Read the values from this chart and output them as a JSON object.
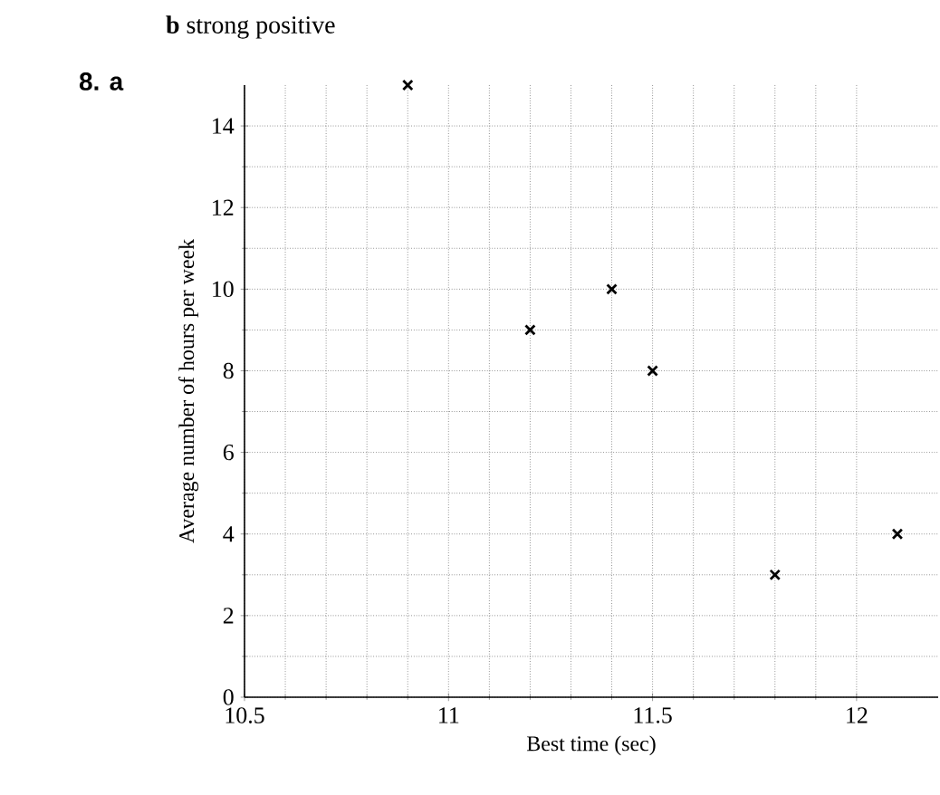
{
  "chart_data": {
    "type": "scatter",
    "xlabel": "Best time (sec)",
    "ylabel": "Average number of hours per week",
    "annotations": [
      "**b** strong positive",
      "**8. a**"
    ],
    "x": [
      10.9,
      11.2,
      11.4,
      11.5,
      11.8,
      12.1
    ],
    "values": [
      15,
      9,
      10,
      8,
      3,
      4
    ],
    "color": "#000000",
    "marker": "cross",
    "grid": true,
    "xlim": [
      10.5,
      12.2
    ],
    "xticks": [
      10.5,
      11,
      11.5,
      12
    ],
    "ylim": [
      0,
      15
    ],
    "yticks": [
      0,
      2,
      4,
      6,
      8,
      10,
      12,
      14
    ]
  }
}
